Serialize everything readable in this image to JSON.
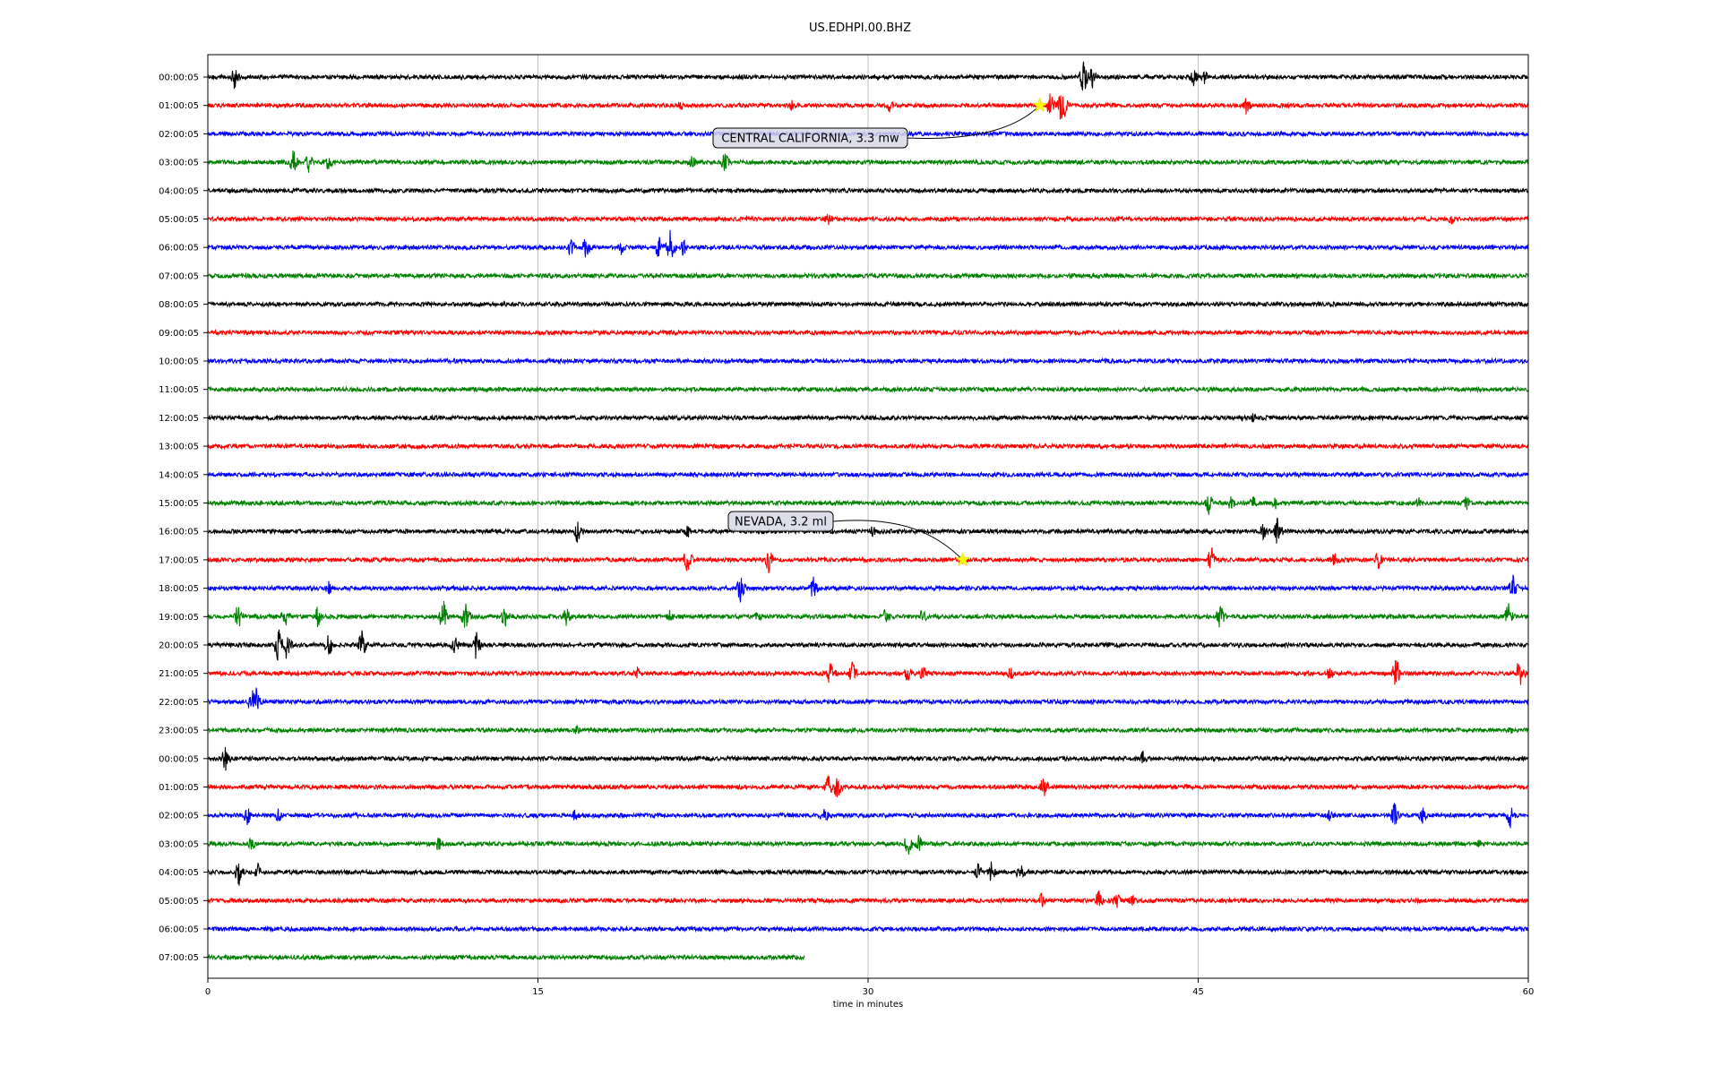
{
  "chart_data": {
    "type": "line",
    "title": "US.EDHPI.00.BHZ",
    "xlabel": "time in minutes",
    "xlim": [
      0,
      60
    ],
    "xticks": [
      0,
      15,
      30,
      45,
      60
    ],
    "x_tick_labels": [
      "0",
      "15",
      "30",
      "45",
      "60"
    ],
    "grid": "vertical lines at x ticks",
    "trace_colors": [
      "#000000",
      "#ff0000",
      "#0000ff",
      "#008000"
    ],
    "rows": [
      {
        "label": "00:00:05",
        "color": "#000000",
        "end_min": 60,
        "events": [
          [
            1.2,
            1.6
          ],
          [
            39.8,
            2.0
          ],
          [
            40.2,
            1.3
          ],
          [
            44.8,
            1.0
          ],
          [
            45.3,
            0.8
          ]
        ]
      },
      {
        "label": "01:00:05",
        "color": "#ff0000",
        "end_min": 60,
        "events": [
          [
            21.5,
            0.6
          ],
          [
            26.5,
            0.7
          ],
          [
            31,
            0.8
          ],
          [
            38.8,
            2.6
          ],
          [
            38.3,
            1.5
          ],
          [
            47.2,
            1.1
          ]
        ]
      },
      {
        "label": "02:00:05",
        "color": "#0000ff",
        "end_min": 60,
        "events": []
      },
      {
        "label": "03:00:05",
        "color": "#008000",
        "end_min": 60,
        "events": [
          [
            3.9,
            1.6
          ],
          [
            4.6,
            1.2
          ],
          [
            5.5,
            1.0
          ],
          [
            22,
            0.8
          ],
          [
            23.5,
            1.2
          ]
        ]
      },
      {
        "label": "04:00:05",
        "color": "#000000",
        "end_min": 60,
        "events": []
      },
      {
        "label": "05:00:05",
        "color": "#ff0000",
        "end_min": 60,
        "events": [
          [
            28.2,
            0.8
          ],
          [
            56.5,
            0.7
          ]
        ]
      },
      {
        "label": "06:00:05",
        "color": "#0000ff",
        "end_min": 60,
        "events": [
          [
            16.5,
            1.2
          ],
          [
            17.2,
            1.6
          ],
          [
            18.8,
            0.9
          ],
          [
            20.5,
            1.4
          ],
          [
            21,
            1.9
          ],
          [
            21.6,
            1.0
          ]
        ]
      },
      {
        "label": "07:00:05",
        "color": "#008000",
        "end_min": 60,
        "events": []
      },
      {
        "label": "08:00:05",
        "color": "#000000",
        "end_min": 60,
        "events": []
      },
      {
        "label": "09:00:05",
        "color": "#ff0000",
        "end_min": 60,
        "events": []
      },
      {
        "label": "10:00:05",
        "color": "#0000ff",
        "end_min": 60,
        "events": []
      },
      {
        "label": "11:00:05",
        "color": "#008000",
        "end_min": 60,
        "events": []
      },
      {
        "label": "12:00:05",
        "color": "#000000",
        "end_min": 60,
        "events": [
          [
            47.5,
            0.6
          ]
        ]
      },
      {
        "label": "13:00:05",
        "color": "#ff0000",
        "end_min": 60,
        "events": []
      },
      {
        "label": "14:00:05",
        "color": "#0000ff",
        "end_min": 60,
        "events": []
      },
      {
        "label": "15:00:05",
        "color": "#008000",
        "end_min": 60,
        "events": [
          [
            45.5,
            1.3
          ],
          [
            46.5,
            0.9
          ],
          [
            47.5,
            0.8
          ],
          [
            48.5,
            0.8
          ],
          [
            55,
            1.0
          ],
          [
            57.2,
            0.9
          ]
        ]
      },
      {
        "label": "16:00:05",
        "color": "#000000",
        "end_min": 60,
        "events": [
          [
            16.8,
            1.3
          ],
          [
            21.8,
            0.8
          ],
          [
            30.2,
            0.8
          ],
          [
            48,
            1.3
          ],
          [
            48.6,
            1.7
          ]
        ]
      },
      {
        "label": "17:00:05",
        "color": "#ff0000",
        "end_min": 60,
        "events": [
          [
            21.8,
            1.6
          ],
          [
            25.5,
            1.5
          ],
          [
            34.3,
            0.5
          ],
          [
            45.6,
            1.6
          ],
          [
            51.2,
            1.2
          ],
          [
            53.2,
            1.2
          ]
        ]
      },
      {
        "label": "18:00:05",
        "color": "#0000ff",
        "end_min": 60,
        "events": [
          [
            5.5,
            0.8
          ],
          [
            24.2,
            1.6
          ],
          [
            27.5,
            1.4
          ],
          [
            59.3,
            1.5
          ]
        ]
      },
      {
        "label": "19:00:05",
        "color": "#008000",
        "end_min": 60,
        "events": [
          [
            1.4,
            1.6
          ],
          [
            3.5,
            1.4
          ],
          [
            5,
            1.2
          ],
          [
            10.7,
            1.9
          ],
          [
            11.7,
            1.6
          ],
          [
            13.5,
            1.4
          ],
          [
            16.3,
            1.1
          ],
          [
            21,
            0.8
          ],
          [
            25,
            0.7
          ],
          [
            30.8,
            0.9
          ],
          [
            32.5,
            1.0
          ],
          [
            46,
            1.6
          ],
          [
            59.1,
            1.5
          ]
        ]
      },
      {
        "label": "20:00:05",
        "color": "#000000",
        "end_min": 60,
        "events": [
          [
            3.2,
            2.0
          ],
          [
            3.6,
            1.8
          ],
          [
            5.5,
            1.5
          ],
          [
            7,
            1.7
          ],
          [
            11.2,
            1.3
          ],
          [
            12.2,
            1.6
          ]
        ]
      },
      {
        "label": "21:00:05",
        "color": "#ff0000",
        "end_min": 60,
        "events": [
          [
            19.5,
            0.8
          ],
          [
            28.3,
            1.5
          ],
          [
            29.3,
            1.3
          ],
          [
            31.8,
            1.0
          ],
          [
            32.5,
            1.0
          ],
          [
            36.5,
            0.8
          ],
          [
            51,
            0.9
          ],
          [
            54,
            1.9
          ],
          [
            59.6,
            1.7
          ]
        ]
      },
      {
        "label": "22:00:05",
        "color": "#0000ff",
        "end_min": 60,
        "events": [
          [
            2,
            2.2
          ],
          [
            2.2,
            1.5
          ]
        ]
      },
      {
        "label": "23:00:05",
        "color": "#008000",
        "end_min": 60,
        "events": [
          [
            16.8,
            0.6
          ],
          [
            59.2,
            0.5
          ]
        ]
      },
      {
        "label": "00:00:05",
        "color": "#000000",
        "end_min": 60,
        "events": [
          [
            0.8,
            1.5
          ],
          [
            42.5,
            0.9
          ]
        ]
      },
      {
        "label": "01:00:05",
        "color": "#ff0000",
        "end_min": 60,
        "events": [
          [
            28.2,
            1.3
          ],
          [
            28.6,
            1.5
          ],
          [
            38,
            1.4
          ]
        ]
      },
      {
        "label": "02:00:05",
        "color": "#0000ff",
        "end_min": 60,
        "events": [
          [
            1.8,
            1.1
          ],
          [
            3.2,
            0.9
          ],
          [
            16.7,
            0.8
          ],
          [
            28,
            1.3
          ],
          [
            51,
            0.8
          ],
          [
            53.9,
            1.6
          ],
          [
            55.2,
            0.9
          ],
          [
            59.2,
            1.6
          ]
        ]
      },
      {
        "label": "03:00:05",
        "color": "#008000",
        "end_min": 60,
        "events": [
          [
            2,
            0.8
          ],
          [
            10.5,
            1.0
          ],
          [
            31.8,
            1.5
          ],
          [
            32.3,
            1.2
          ],
          [
            57.8,
            0.6
          ]
        ]
      },
      {
        "label": "04:00:05",
        "color": "#000000",
        "end_min": 60,
        "events": [
          [
            1.4,
            1.6
          ],
          [
            2.3,
            1.0
          ],
          [
            35,
            1.0
          ],
          [
            35.6,
            1.3
          ],
          [
            36.9,
            1.2
          ]
        ]
      },
      {
        "label": "05:00:05",
        "color": "#ff0000",
        "end_min": 60,
        "events": [
          [
            37.9,
            0.9
          ],
          [
            40.5,
            1.3
          ],
          [
            41.3,
            1.0
          ],
          [
            42,
            0.9
          ]
        ]
      },
      {
        "label": "06:00:05",
        "color": "#0000ff",
        "end_min": 60,
        "events": []
      },
      {
        "label": "07:00:05",
        "color": "#008000",
        "end_min": 27.1,
        "events": []
      }
    ],
    "annotations": [
      {
        "text": "CENTRAL CALIFORNIA, 3.3 mw",
        "row": 1,
        "x": 37.8
      },
      {
        "text": "NEVADA, 3.2 ml",
        "row": 17,
        "x": 34.3
      }
    ]
  }
}
